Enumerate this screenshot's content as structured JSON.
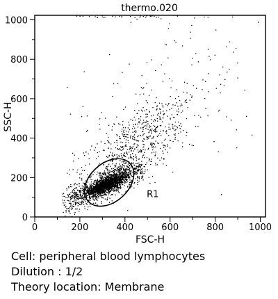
{
  "chart_data": {
    "type": "scatter",
    "title": "thermo.020",
    "xlabel": "FSC-H",
    "ylabel": "SSC-H",
    "xlim": [
      0,
      1023
    ],
    "ylim": [
      0,
      1023
    ],
    "xticks": [
      0,
      200,
      400,
      600,
      800,
      1000
    ],
    "yticks": [
      0,
      200,
      400,
      600,
      800,
      1000
    ],
    "grid": false,
    "series": [
      {
        "clusters": [
          {
            "center": [
              315,
              165
            ],
            "spread": [
              40,
              25
            ],
            "correlation": 0.8,
            "count": 1300
          },
          {
            "center": [
              330,
              175
            ],
            "spread": [
              75,
              50
            ],
            "correlation": 0.75,
            "count": 1100
          },
          {
            "center": [
              180,
              95
            ],
            "spread": [
              35,
              40
            ],
            "correlation": 0.3,
            "count": 170
          },
          {
            "center": [
              455,
              380
            ],
            "spread": [
              110,
              110
            ],
            "correlation": 0.65,
            "count": 600
          },
          {
            "center": [
              600,
              600
            ],
            "spread": [
              230,
              250
            ],
            "correlation": 0.35,
            "count": 160
          },
          {
            "center": [
              400,
              1018
            ],
            "spread": [
              170,
              4
            ],
            "correlation": 0.0,
            "count": 40
          }
        ]
      }
    ],
    "regions": [
      {
        "name": "R1",
        "type": "ellipse",
        "center": [
          330,
          175
        ],
        "semi_axes": [
          125,
          98
        ],
        "rotation_deg": -42
      }
    ]
  },
  "captions": [
    "Cell: peripheral blood lymphocytes",
    "Dilution : 1/2",
    "Theory location: Membrane"
  ]
}
